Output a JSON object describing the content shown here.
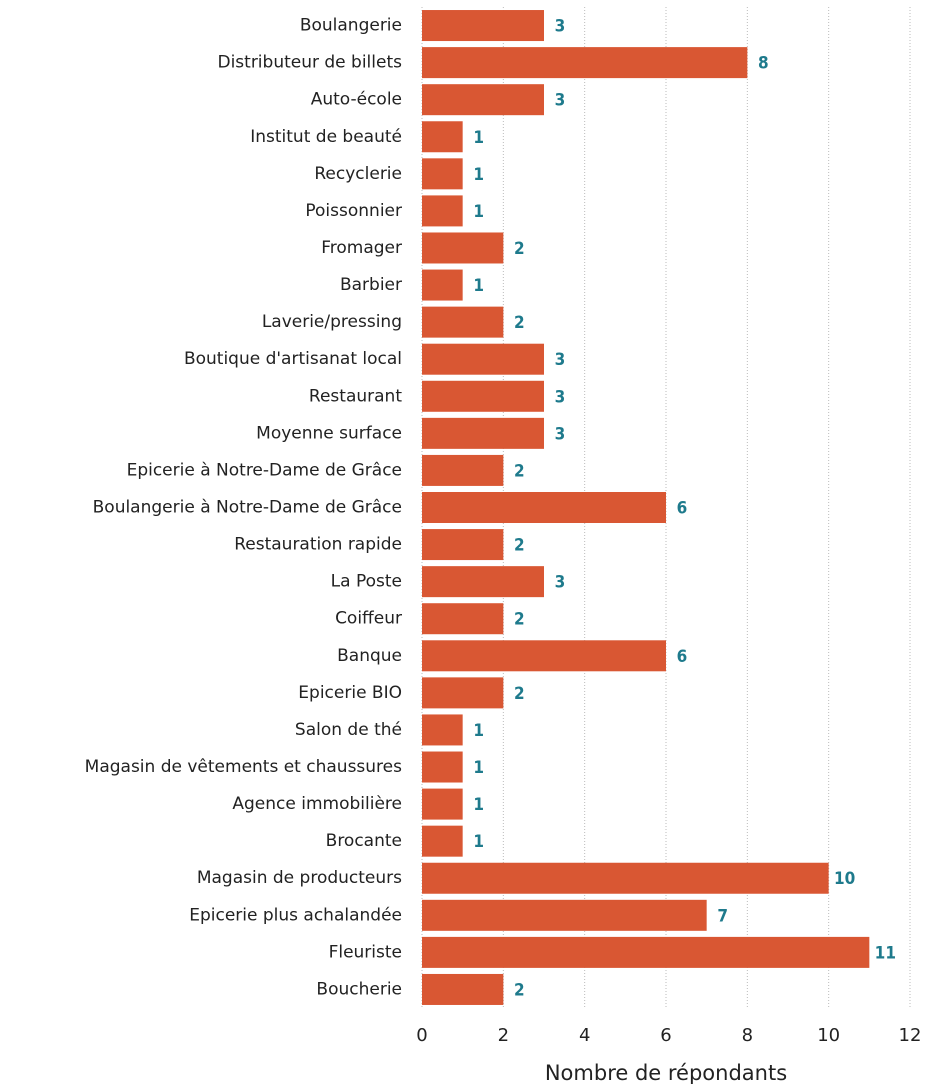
{
  "chart_data": {
    "type": "barh",
    "xlabel": "Nombre de répondants",
    "categories": [
      "Boulangerie",
      "Distributeur de billets",
      "Auto-école",
      "Institut de beauté",
      "Recyclerie",
      "Poissonnier",
      "Fromager",
      "Barbier",
      "Laverie/pressing",
      "Boutique d'artisanat local",
      "Restaurant",
      "Moyenne surface",
      "Epicerie à Notre-Dame de Grâce",
      "Boulangerie à Notre-Dame de Grâce",
      "Restauration rapide",
      "La Poste",
      "Coiffeur",
      "Banque",
      "Epicerie BIO",
      "Salon de thé",
      "Magasin de vêtements et chaussures",
      "Agence immobilière",
      "Brocante",
      "Magasin de producteurs",
      "Epicerie plus achalandée",
      "Fleuriste",
      "Boucherie"
    ],
    "values": [
      3,
      8,
      3,
      1,
      1,
      1,
      2,
      1,
      2,
      3,
      3,
      3,
      2,
      6,
      2,
      3,
      2,
      6,
      2,
      1,
      1,
      1,
      1,
      10,
      7,
      11,
      2
    ],
    "color": "#d95733",
    "label_color": "#1e7a8c",
    "xlim": [
      0,
      12
    ],
    "xticks": [
      0,
      2,
      4,
      6,
      8,
      10,
      12
    ],
    "grid": true
  }
}
